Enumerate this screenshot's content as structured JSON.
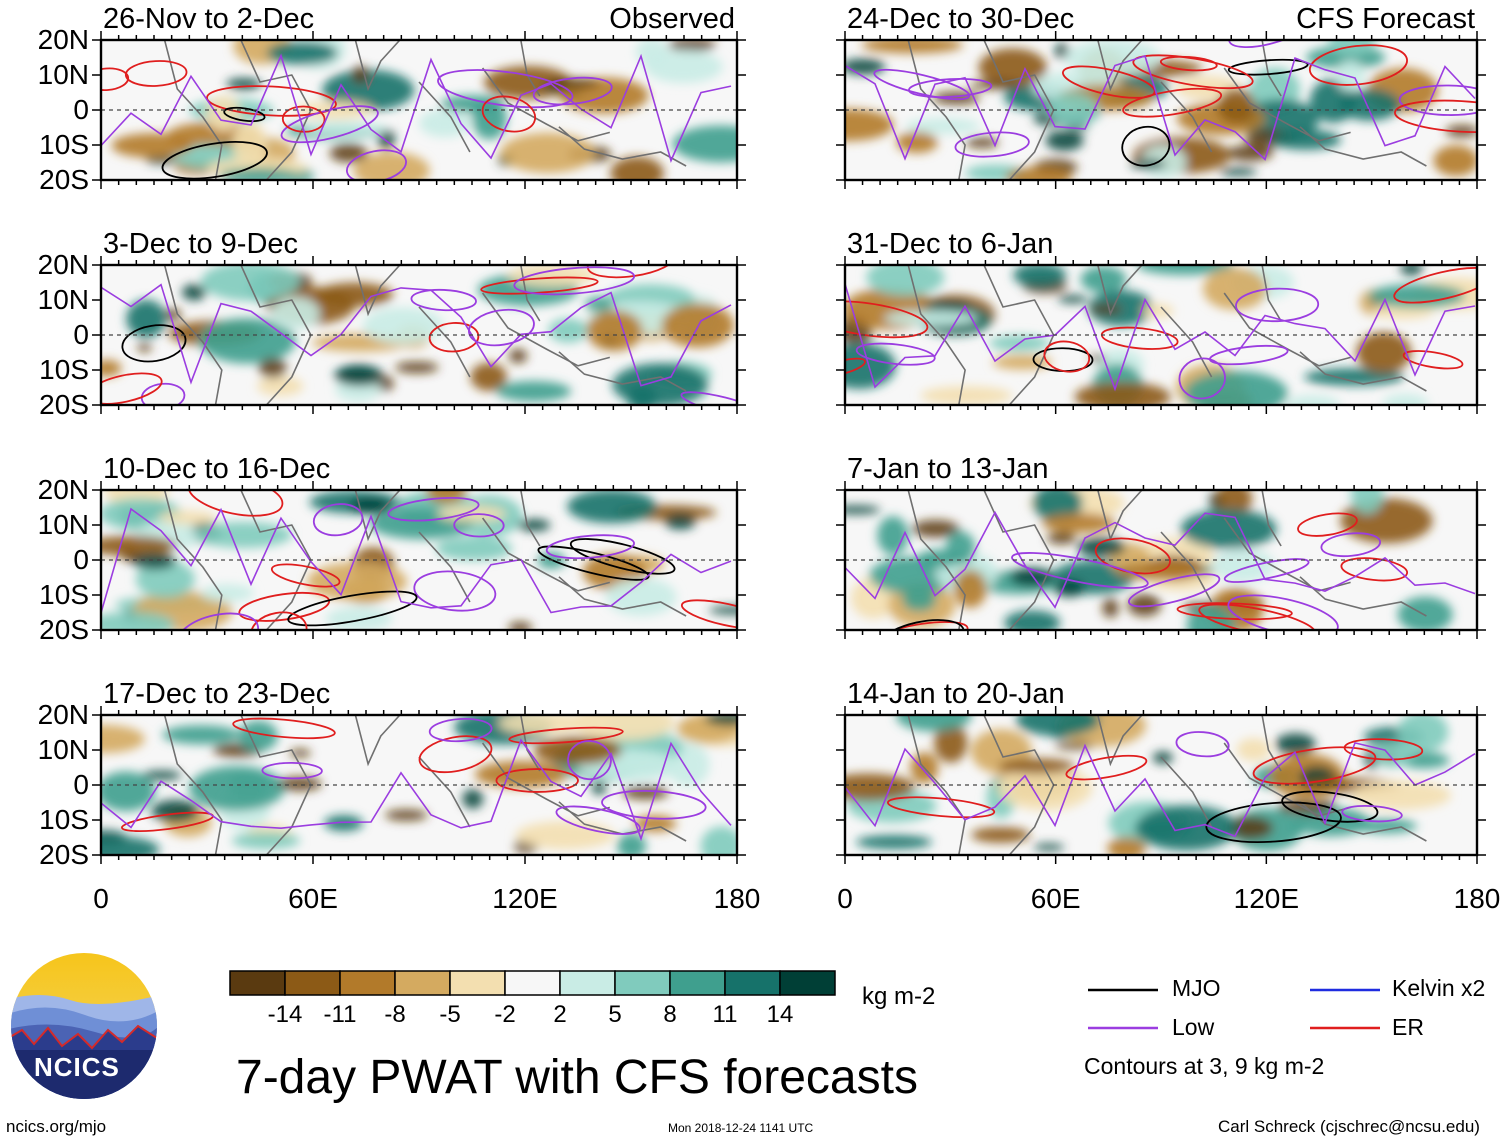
{
  "panels": [
    {
      "col": 0,
      "row": 0,
      "title": "26-Nov to 2-Dec",
      "right_title": "Observed"
    },
    {
      "col": 0,
      "row": 1,
      "title": "3-Dec to 9-Dec",
      "right_title": ""
    },
    {
      "col": 0,
      "row": 2,
      "title": "10-Dec to 16-Dec",
      "right_title": ""
    },
    {
      "col": 0,
      "row": 3,
      "title": "17-Dec to 23-Dec",
      "right_title": ""
    },
    {
      "col": 1,
      "row": 0,
      "title": "24-Dec to 30-Dec",
      "right_title": "CFS Forecast"
    },
    {
      "col": 1,
      "row": 1,
      "title": "31-Dec to 6-Jan",
      "right_title": ""
    },
    {
      "col": 1,
      "row": 2,
      "title": "7-Jan to 13-Jan",
      "right_title": ""
    },
    {
      "col": 1,
      "row": 3,
      "title": "14-Jan to 20-Jan",
      "right_title": ""
    }
  ],
  "lat_labels": [
    "20N",
    "10N",
    "0",
    "10S",
    "20S"
  ],
  "lon_labels": [
    "0",
    "60E",
    "120E",
    "180"
  ],
  "colorbar": {
    "colors": [
      "#5a3a10",
      "#8c5a16",
      "#b27a2a",
      "#d4aa60",
      "#f3dfb0",
      "#f7f7f7",
      "#c9ece5",
      "#80cbbd",
      "#3f9f8e",
      "#16726a",
      "#003f36"
    ],
    "labels": [
      "-14",
      "-11",
      "-8",
      "-5",
      "-2",
      "2",
      "5",
      "8",
      "11",
      "14"
    ],
    "units": "kg m-2"
  },
  "legend": {
    "items": [
      {
        "label": "MJO",
        "color": "#000000"
      },
      {
        "label": "Kelvin x2",
        "color": "#1f2ce0"
      },
      {
        "label": "Low",
        "color": "#9b3de0"
      },
      {
        "label": "ER",
        "color": "#e01e1e"
      }
    ],
    "note": "Contours at 3, 9 kg m-2"
  },
  "logo": {
    "text": "NCICS"
  },
  "title": "7-day PWAT with CFS forecasts",
  "url": "ncics.org/mjo",
  "timestamp": "Mon 2018-12-24 1141 UTC",
  "credit": "Carl Schreck (cjschrec@ncsu.edu)"
}
